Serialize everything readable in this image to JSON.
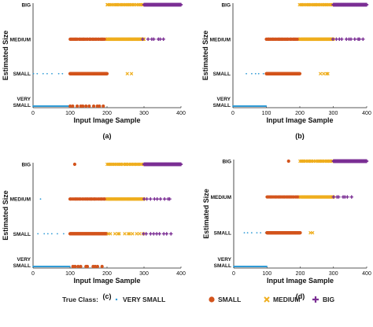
{
  "colors": {
    "very_small": "#2f9bd6",
    "small": "#d3541c",
    "medium": "#efae1e",
    "big": "#7b2f94"
  },
  "legend": {
    "title": "True Class:",
    "entries": [
      {
        "label": "VERY SMALL",
        "icon": "dot-marker",
        "color": "#2f9bd6"
      },
      {
        "label": "SMALL",
        "icon": "circle-marker",
        "color": "#d3541c"
      },
      {
        "label": "MEDIUM",
        "icon": "x-marker",
        "color": "#efae1e"
      },
      {
        "label": "BIG",
        "icon": "plus-marker",
        "color": "#7b2f94"
      }
    ]
  },
  "chart_data": [
    {
      "type": "scatter",
      "panel_label": "(a)",
      "title": "",
      "xlabel": "Input Image Sample",
      "ylabel": "Estimated Size",
      "xlim": [
        0,
        400
      ],
      "xticks": [
        "0",
        "100",
        "200",
        "300",
        "400"
      ],
      "yticks": [
        "VERY SMALL",
        "SMALL",
        "MEDIUM",
        "BIG"
      ],
      "series": [
        {
          "name": "VERY SMALL",
          "points": [
            {
              "range": [
                0,
                100
              ],
              "level": "VERY SMALL",
              "density": "dense"
            },
            {
              "range": [
                0,
                85
              ],
              "level": "SMALL",
              "density": "sparse"
            }
          ]
        },
        {
          "name": "SMALL",
          "points": [
            {
              "range": [
                100,
                200
              ],
              "level": "SMALL",
              "density": "dense"
            },
            {
              "range": [
                100,
                190
              ],
              "level": "VERY SMALL",
              "density": "sparse"
            },
            {
              "range": [
                100,
                200
              ],
              "level": "MEDIUM",
              "density": "medium"
            }
          ]
        },
        {
          "name": "MEDIUM",
          "points": [
            {
              "range": [
                200,
                300
              ],
              "level": "MEDIUM",
              "density": "dense"
            },
            {
              "range": [
                200,
                300
              ],
              "level": "BIG",
              "density": "medium"
            },
            {
              "range": [
                255,
                265
              ],
              "level": "SMALL",
              "density": "sparse"
            }
          ]
        },
        {
          "name": "BIG",
          "points": [
            {
              "range": [
                300,
                400
              ],
              "level": "BIG",
              "density": "dense"
            },
            {
              "range": [
                300,
                355
              ],
              "level": "MEDIUM",
              "density": "sparse"
            }
          ]
        }
      ]
    },
    {
      "type": "scatter",
      "panel_label": "(b)",
      "title": "",
      "xlabel": "Input Image Sample",
      "ylabel": "Estimated Size",
      "xlim": [
        0,
        400
      ],
      "xticks": [
        "0",
        "100",
        "200",
        "300",
        "400"
      ],
      "yticks": [
        "VERY SMALL",
        "SMALL",
        "MEDIUM",
        "BIG"
      ],
      "series": [
        {
          "name": "VERY SMALL",
          "points": [
            {
              "range": [
                0,
                100
              ],
              "level": "VERY SMALL",
              "density": "dense"
            },
            {
              "range": [
                40,
                100
              ],
              "level": "SMALL",
              "density": "sparse"
            }
          ]
        },
        {
          "name": "SMALL",
          "points": [
            {
              "range": [
                100,
                200
              ],
              "level": "SMALL",
              "density": "dense"
            },
            {
              "range": [
                100,
                200
              ],
              "level": "MEDIUM",
              "density": "medium"
            }
          ]
        },
        {
          "name": "MEDIUM",
          "points": [
            {
              "range": [
                200,
                300
              ],
              "level": "MEDIUM",
              "density": "dense"
            },
            {
              "range": [
                200,
                300
              ],
              "level": "BIG",
              "density": "medium"
            },
            {
              "range": [
                260,
                290
              ],
              "level": "SMALL",
              "density": "sparse"
            }
          ]
        },
        {
          "name": "BIG",
          "points": [
            {
              "range": [
                300,
                400
              ],
              "level": "BIG",
              "density": "dense"
            },
            {
              "range": [
                300,
                390
              ],
              "level": "MEDIUM",
              "density": "sparse"
            }
          ]
        }
      ]
    },
    {
      "type": "scatter",
      "panel_label": "(c)",
      "title": "",
      "xlabel": "Input Image Sample",
      "ylabel": "Estimated Size",
      "xlim": [
        0,
        400
      ],
      "xticks": [
        "0",
        "100",
        "200",
        "300",
        "400"
      ],
      "yticks": [
        "VERY SMALL",
        "SMALL",
        "MEDIUM",
        "BIG"
      ],
      "series": [
        {
          "name": "VERY SMALL",
          "points": [
            {
              "range": [
                0,
                100
              ],
              "level": "VERY SMALL",
              "density": "dense"
            },
            {
              "range": [
                0,
                90
              ],
              "level": "SMALL",
              "density": "sparse"
            },
            {
              "range": [
                20,
                25
              ],
              "level": "MEDIUM",
              "density": "sparse"
            }
          ]
        },
        {
          "name": "SMALL",
          "points": [
            {
              "range": [
                100,
                200
              ],
              "level": "SMALL",
              "density": "dense"
            },
            {
              "range": [
                100,
                200
              ],
              "level": "MEDIUM",
              "density": "medium"
            },
            {
              "range": [
                105,
                190
              ],
              "level": "VERY SMALL",
              "density": "sparse"
            },
            {
              "range": [
                110,
                115
              ],
              "level": "BIG",
              "density": "sparse"
            }
          ]
        },
        {
          "name": "MEDIUM",
          "points": [
            {
              "range": [
                200,
                300
              ],
              "level": "MEDIUM",
              "density": "dense"
            },
            {
              "range": [
                200,
                300
              ],
              "level": "BIG",
              "density": "medium"
            },
            {
              "range": [
                200,
                300
              ],
              "level": "SMALL",
              "density": "sparse"
            }
          ]
        },
        {
          "name": "BIG",
          "points": [
            {
              "range": [
                300,
                400
              ],
              "level": "BIG",
              "density": "dense"
            },
            {
              "range": [
                300,
                380
              ],
              "level": "MEDIUM",
              "density": "sparse"
            },
            {
              "range": [
                300,
                380
              ],
              "level": "SMALL",
              "density": "sparse"
            }
          ]
        }
      ]
    },
    {
      "type": "scatter",
      "panel_label": "(d)",
      "title": "",
      "xlabel": "Input Image Sample",
      "ylabel": "Estimated Size",
      "xlim": [
        0,
        400
      ],
      "xticks": [
        "0",
        "100",
        "200",
        "300",
        "400"
      ],
      "yticks": [
        "VERY SMALL",
        "SMALL",
        "MEDIUM",
        "BIG"
      ],
      "series": [
        {
          "name": "VERY SMALL",
          "points": [
            {
              "range": [
                0,
                100
              ],
              "level": "VERY SMALL",
              "density": "dense"
            },
            {
              "range": [
                30,
                100
              ],
              "level": "SMALL",
              "density": "sparse"
            }
          ]
        },
        {
          "name": "SMALL",
          "points": [
            {
              "range": [
                100,
                200
              ],
              "level": "SMALL",
              "density": "dense"
            },
            {
              "range": [
                100,
                200
              ],
              "level": "MEDIUM",
              "density": "medium"
            },
            {
              "range": [
                165,
                170
              ],
              "level": "BIG",
              "density": "sparse"
            }
          ]
        },
        {
          "name": "MEDIUM",
          "points": [
            {
              "range": [
                200,
                300
              ],
              "level": "MEDIUM",
              "density": "dense"
            },
            {
              "range": [
                200,
                300
              ],
              "level": "BIG",
              "density": "medium"
            },
            {
              "range": [
                230,
                240
              ],
              "level": "SMALL",
              "density": "sparse"
            }
          ]
        },
        {
          "name": "BIG",
          "points": [
            {
              "range": [
                300,
                400
              ],
              "level": "BIG",
              "density": "dense"
            },
            {
              "range": [
                300,
                360
              ],
              "level": "MEDIUM",
              "density": "sparse"
            }
          ]
        }
      ]
    }
  ]
}
